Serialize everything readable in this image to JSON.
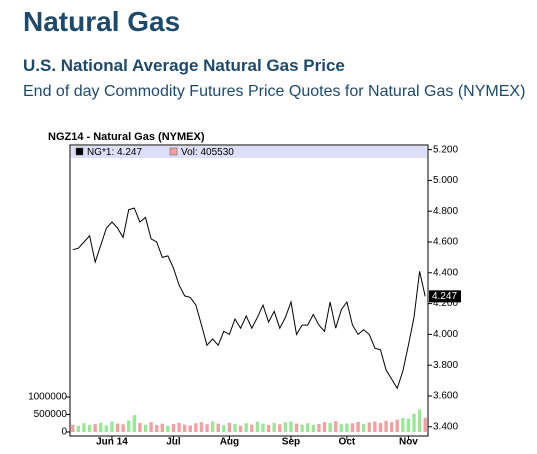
{
  "header": {
    "title": "Natural Gas",
    "subtitle": "U.S. National Average Natural Gas Price",
    "description": "End of day Commodity Futures Price Quotes for Natural Gas (NYMEX)"
  },
  "chart_data": {
    "type": "line",
    "title": "NGZ14 - Natural Gas (NYMEX)",
    "categories": [
      null,
      null,
      null,
      null,
      null,
      null,
      null,
      "Jun 14",
      null,
      null,
      null,
      null,
      null,
      null,
      null,
      null,
      null,
      null,
      "Jul",
      null,
      null,
      null,
      null,
      null,
      null,
      null,
      null,
      null,
      "Aug",
      null,
      null,
      null,
      null,
      null,
      null,
      null,
      null,
      null,
      null,
      "Sep",
      null,
      null,
      null,
      null,
      null,
      null,
      null,
      null,
      null,
      "Oct",
      null,
      null,
      null,
      null,
      null,
      null,
      null,
      null,
      null,
      null,
      "Nov",
      null,
      null,
      null
    ],
    "series": [
      {
        "name": "NG*1: 4.247",
        "color": "#000000",
        "values": [
          4.55,
          4.56,
          4.6,
          4.64,
          4.47,
          4.58,
          4.69,
          4.73,
          4.69,
          4.63,
          4.81,
          4.82,
          4.73,
          4.76,
          4.62,
          4.6,
          4.5,
          4.51,
          4.43,
          4.32,
          4.25,
          4.24,
          4.19,
          4.06,
          3.93,
          3.97,
          3.93,
          4.02,
          4.0,
          4.1,
          4.04,
          4.12,
          4.04,
          4.11,
          4.19,
          4.08,
          4.15,
          4.04,
          4.11,
          4.21,
          4.0,
          4.06,
          4.06,
          4.13,
          4.06,
          4.02,
          4.21,
          4.04,
          4.16,
          4.21,
          4.06,
          4.0,
          4.03,
          4.0,
          3.91,
          3.9,
          3.77,
          3.71,
          3.65,
          3.76,
          3.93,
          4.11,
          4.41,
          4.247
        ]
      },
      {
        "name": "Vol: 405530",
        "type": "bar",
        "axis": "y2",
        "color": "#f4a0a0",
        "up_color": "#98e898",
        "values": [
          210000,
          180000,
          250000,
          200000,
          230000,
          260000,
          190000,
          300000,
          240000,
          220000,
          330000,
          480000,
          260000,
          210000,
          280000,
          200000,
          240000,
          180000,
          230000,
          260000,
          210000,
          190000,
          250000,
          280000,
          220000,
          300000,
          240000,
          200000,
          260000,
          230000,
          180000,
          250000,
          210000,
          290000,
          240000,
          200000,
          260000,
          220000,
          280000,
          300000,
          240000,
          210000,
          250000,
          200000,
          230000,
          280000,
          260000,
          310000,
          220000,
          240000,
          250000,
          290000,
          230000,
          270000,
          300000,
          260000,
          320000,
          280000,
          350000,
          400000,
          380000,
          520000,
          640000,
          405530
        ]
      }
    ],
    "ylim": [
      3.34,
      5.23
    ],
    "yticks": [
      {
        "value": 3.4,
        "label": "3.400"
      },
      {
        "value": 3.6,
        "label": "3.600"
      },
      {
        "value": 3.8,
        "label": "3.800"
      },
      {
        "value": 4.0,
        "label": "4.000"
      },
      {
        "value": 4.2,
        "label": "4.200"
      },
      {
        "value": 4.4,
        "label": "4.400"
      },
      {
        "value": 4.6,
        "label": "4.600"
      },
      {
        "value": 4.8,
        "label": "4.800"
      },
      {
        "value": 5.0,
        "label": "5.000"
      },
      {
        "value": 5.2,
        "label": "5.200"
      }
    ],
    "y2lim": [
      0,
      8200000
    ],
    "y2ticks": [
      0,
      500000,
      1000000
    ],
    "last_value_label": {
      "value": 4.247,
      "label": "4.247"
    }
  }
}
